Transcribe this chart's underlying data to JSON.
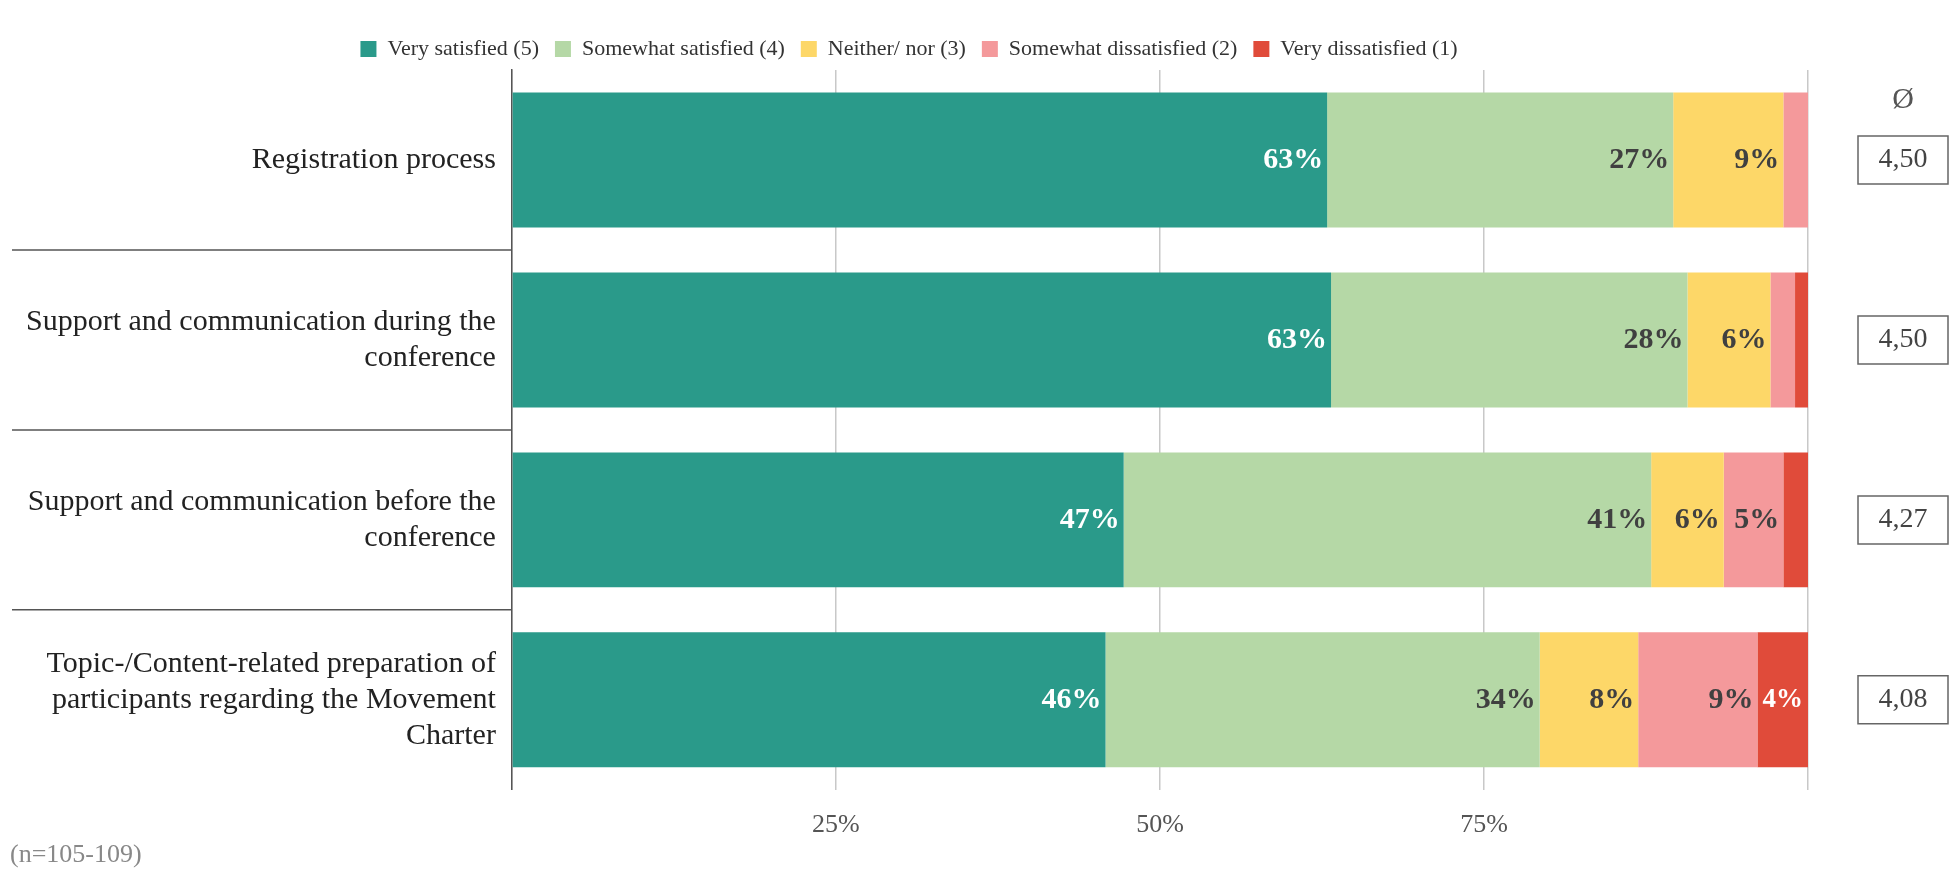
{
  "chart_data": {
    "type": "bar",
    "orientation": "horizontal",
    "stacked": true,
    "categories": [
      "Registration process",
      "Support and communication during the conference",
      "Support and communication before the conference",
      "Topic-/Content-related preparation of participants regarding the Movement Charter"
    ],
    "series": [
      {
        "name": "Very satisfied (5)",
        "color": "#2a9a8a",
        "values": [
          62.9,
          63.2,
          47.2,
          45.8
        ],
        "value_labels": [
          "63%",
          "63%",
          "47%",
          "46%"
        ]
      },
      {
        "name": "Somewhat satisfied (4)",
        "color": "#b5d8a6",
        "values": [
          26.7,
          27.5,
          40.7,
          33.5
        ],
        "value_labels": [
          "27%",
          "28%",
          "41%",
          "34%"
        ]
      },
      {
        "name": "Neither/ nor (3)",
        "color": "#fdd768",
        "values": [
          8.5,
          6.4,
          5.6,
          7.6
        ],
        "value_labels": [
          "9%",
          "6%",
          "6%",
          "8%"
        ]
      },
      {
        "name": "Somewhat dissatisfied (2)",
        "color": "#f4999b",
        "values": [
          1.9,
          1.9,
          4.6,
          9.2
        ],
        "value_labels": [
          null,
          null,
          "5%",
          "9%"
        ]
      },
      {
        "name": "Very dissatisfied (1)",
        "color": "#e04b3a",
        "values": [
          0,
          1,
          1.9,
          3.9
        ],
        "value_labels": [
          null,
          null,
          null,
          "4%"
        ]
      }
    ],
    "xlim": [
      0,
      100
    ],
    "xticks": [
      {
        "value": 0,
        "label": null
      },
      {
        "value": 25,
        "label": "25%"
      },
      {
        "value": 50,
        "label": "50%"
      },
      {
        "value": 75,
        "label": "75%"
      },
      {
        "value": 100,
        "label": null
      }
    ],
    "grid": "x",
    "legend": "top",
    "annotations": [
      "Ø",
      "(n=105-109)",
      "4,50",
      "4,50",
      "4,27",
      "4,08"
    ]
  }
}
